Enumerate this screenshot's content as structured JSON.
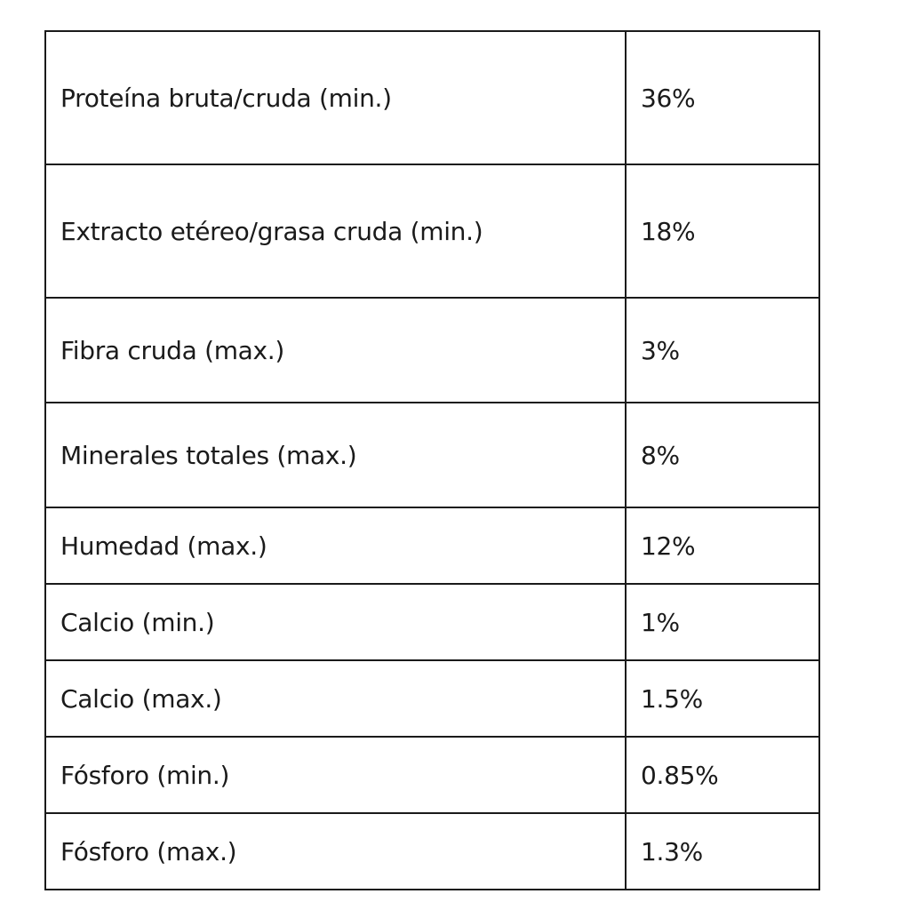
{
  "table": {
    "rows": [
      {
        "label": "Proteína bruta/cruda (min.)",
        "value": "36%"
      },
      {
        "label": "Extracto etéreo/grasa cruda (min.)",
        "value": "18%"
      },
      {
        "label": "Fibra cruda (max.)",
        "value": "3%"
      },
      {
        "label": "Minerales totales (max.)",
        "value": "8%"
      },
      {
        "label": "Humedad (max.)",
        "value": "12%"
      },
      {
        "label": "Calcio (min.)",
        "value": "1%"
      },
      {
        "label": "Calcio (max.)",
        "value": "1.5%"
      },
      {
        "label": "Fósforo (min.)",
        "value": "0.85%"
      },
      {
        "label": "Fósforo (max.)",
        "value": "1.3%"
      }
    ]
  }
}
